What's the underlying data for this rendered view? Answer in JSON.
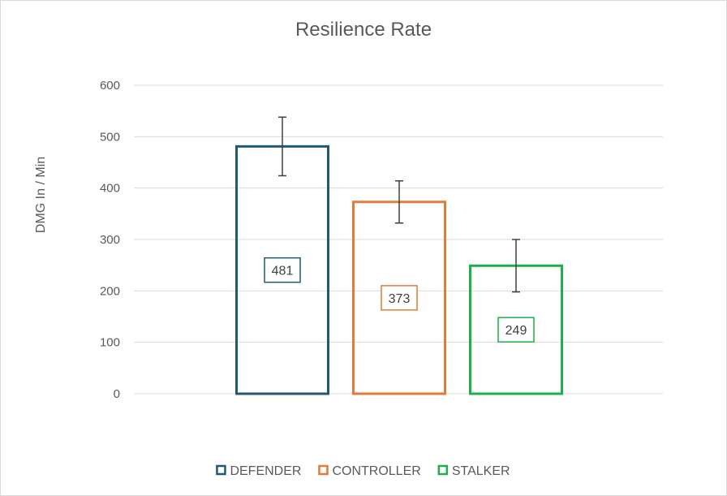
{
  "chart_data": {
    "type": "bar",
    "title": "Resilience Rate",
    "ylabel": "DMG In / Min",
    "xlabel": "",
    "ylim": [
      0,
      600
    ],
    "yticks": [
      0,
      100,
      200,
      300,
      400,
      500,
      600
    ],
    "grid": true,
    "legend_position": "bottom",
    "series": [
      {
        "name": "DEFENDER",
        "value": 481,
        "error_low": 424,
        "error_high": 538,
        "color": "#1f5a70"
      },
      {
        "name": "CONTROLLER",
        "value": 373,
        "error_low": 332,
        "error_high": 414,
        "color": "#e07b39"
      },
      {
        "name": "STALKER",
        "value": 249,
        "error_low": 198,
        "error_high": 300,
        "color": "#1bb04a"
      }
    ]
  }
}
